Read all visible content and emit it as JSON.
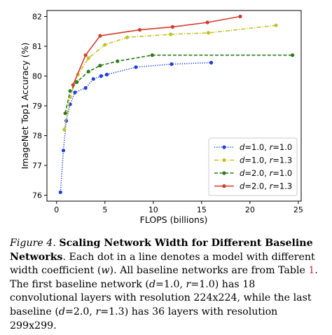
{
  "chart_data": {
    "type": "line",
    "xlabel": "FLOPS (billions)",
    "ylabel": "ImageNet Top1 Accuracy (%)",
    "xlim": [
      -1,
      25.3
    ],
    "ylim": [
      75.8,
      82.2
    ],
    "xticks": [
      "0",
      "5",
      "10",
      "15",
      "20",
      "25"
    ],
    "yticks": [
      "76",
      "77",
      "78",
      "79",
      "80",
      "81",
      "82"
    ],
    "legend_position": "lower-right",
    "series": [
      {
        "name": "d=1.0, r=1.0",
        "label_parts": {
          "a": "d",
          "b": "=1.0, ",
          "c": "r",
          "d": "=1.0"
        },
        "color": "#1f3fd6",
        "line_style": "dotted",
        "x": [
          0.4,
          0.7,
          1.0,
          1.4,
          1.9,
          3.0,
          3.8,
          4.6,
          5.2,
          8.2,
          11.9,
          16.0
        ],
        "y": [
          76.1,
          77.5,
          78.5,
          79.05,
          79.45,
          79.6,
          79.9,
          80.0,
          80.05,
          80.3,
          80.4,
          80.45
        ]
      },
      {
        "name": "d=1.0, r=1.3",
        "label_parts": {
          "a": "d",
          "b": "=1.0, ",
          "c": "r",
          "d": "=1.3"
        },
        "color": "#c3c32a",
        "line_style": "dashdot",
        "x": [
          0.8,
          1.4,
          2.2,
          3.3,
          5.0,
          7.3,
          11.8,
          15.7,
          22.7
        ],
        "y": [
          78.2,
          79.3,
          80.05,
          80.6,
          81.05,
          81.3,
          81.4,
          81.45,
          81.7
        ]
      },
      {
        "name": "d=2.0, r=1.0",
        "label_parts": {
          "a": "d",
          "b": "=2.0, ",
          "c": "r",
          "d": "=1.0"
        },
        "color": "#2d7a1e",
        "line_style": "dashed",
        "x": [
          0.9,
          1.4,
          2.1,
          3.3,
          4.5,
          6.3,
          9.9,
          24.4
        ],
        "y": [
          78.75,
          79.5,
          79.8,
          80.15,
          80.35,
          80.5,
          80.7,
          80.7
        ]
      },
      {
        "name": "d=2.0, r=1.3",
        "label_parts": {
          "a": "d",
          "b": "=2.0, ",
          "c": "r",
          "d": "=1.3"
        },
        "color": "#d63a2b",
        "line_style": "solid",
        "x": [
          1.7,
          3.0,
          4.5,
          8.6,
          12.0,
          15.6,
          19.0
        ],
        "y": [
          79.7,
          80.7,
          81.35,
          81.55,
          81.65,
          81.8,
          82.0
        ]
      }
    ]
  },
  "caption": {
    "figure_label": "Figure 4.",
    "title": "Scaling Network Width for Different Baseline Networks",
    "text_1": ". Each dot in a line denotes a model with different width coefficient (",
    "w_symbol": "w",
    "text_2": "). All baseline networks are from Table ",
    "table_ref": "1",
    "text_3": ". The first baseline network (",
    "d_symbol_1": "d",
    "text_4": "=1.0, ",
    "r_symbol_1": "r",
    "text_5": "=1.0) has 18 convolutional layers with resolution 224x224, while the last baseline (",
    "d_symbol_2": "d",
    "text_6": "=2.0, ",
    "r_symbol_2": "r",
    "text_7": "=1.3) has 36 layers with resolution 299x299."
  }
}
